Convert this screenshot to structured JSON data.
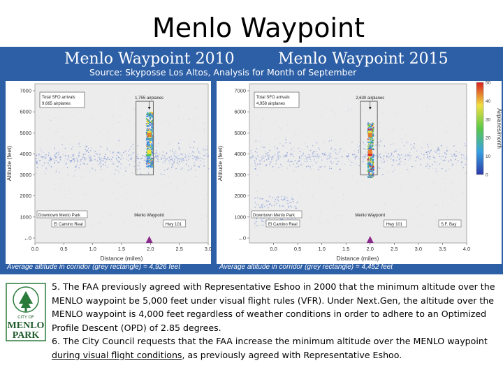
{
  "slide": {
    "title": "Menlo Waypoint",
    "source": "Source: Skyposse Los Altos, Analysis for Month of September"
  },
  "colors": {
    "figure_background": "#2d5fa6",
    "panel_background": "#ededed",
    "marker": "#8a2a8a"
  },
  "chart_data": [
    {
      "type": "heatmap",
      "title": "Menlo Waypoint 2010",
      "xlabel": "Distance (miles)",
      "ylabel": "Altitude (feet)",
      "x_ticks": [
        "0.0",
        "0.5",
        "1.0",
        "1.5",
        "2.0",
        "2.5",
        "3.0"
      ],
      "y_ticks": [
        "0",
        "1000",
        "2000",
        "3000",
        "4000",
        "5000",
        "6000",
        "7000"
      ],
      "xlim": [
        0,
        3
      ],
      "ylim": [
        0,
        7000
      ],
      "annotations": {
        "total": "Total SFO arrivals\n9,665 airplanes",
        "corridor_count": "1,755 airplanes",
        "left_label": "Downtown Menlo Park",
        "left_box": "El Camino Real",
        "waypoint": "Menlo Waypoint",
        "right_box": "Hwy 101"
      },
      "corridor": {
        "x": [
          1.75,
          2.05
        ],
        "y": [
          3000,
          6500
        ]
      },
      "waypoint_distance": 1.98,
      "average_altitude": "Average altitude in corridor (grey rectangle) = 4,926 feet"
    },
    {
      "type": "heatmap",
      "title": "Menlo Waypoint 2015",
      "xlabel": "Distance (miles)",
      "ylabel": "Altitude (feet)",
      "x_ticks": [
        "0.0",
        "0.5",
        "1.0",
        "1.5",
        "2.0",
        "2.5",
        "3.0",
        "3.5",
        "4.0"
      ],
      "y_ticks": [
        "0",
        "1000",
        "2000",
        "3000",
        "4000",
        "5000",
        "6000",
        "7000"
      ],
      "xlim": [
        -0.5,
        4
      ],
      "ylim": [
        0,
        7000
      ],
      "annotations": {
        "total": "Total SFO arrivals\n4,958 airplanes",
        "corridor_count": "2,630 airplanes",
        "left_label": "Downtown Menlo Park",
        "left_box": "El Camino Real",
        "waypoint": "Menlo Waypoint",
        "right_box": "Hwy 101",
        "far_box": "S.F. Bay"
      },
      "corridor": {
        "x": [
          1.8,
          2.15
        ],
        "y": [
          3000,
          6500
        ]
      },
      "waypoint_distance": 2.0,
      "average_altitude": "Average altitude in corridor (grey rectangle) = 4,452 feet",
      "colorbar": {
        "label": "Airplanes/month",
        "ticks": [
          "0",
          "10",
          "20",
          "30",
          "40",
          "50"
        ]
      }
    }
  ],
  "logo": {
    "line1": "CITY OF",
    "line2": "MENLO",
    "line3": "PARK"
  },
  "notes": {
    "item5": "5. The FAA previously agreed with Representative Eshoo in 2000 that the minimum altitude over the MENLO waypoint be 5,000 feet under visual flight rules (VFR). Under Next.Gen, the altitude over the MENLO waypoint is 4,000 feet regardless of weather conditions in order to adhere to an Optimized Profile Descent (OPD) of 2.85 degrees.",
    "item6_start": "6. The City Council requests that the FAA increase the minimum altitude over the MENLO waypoint ",
    "item6_underlined": "during visual flight conditions",
    "item6_end": ", as previously agreed with Representative Eshoo."
  }
}
